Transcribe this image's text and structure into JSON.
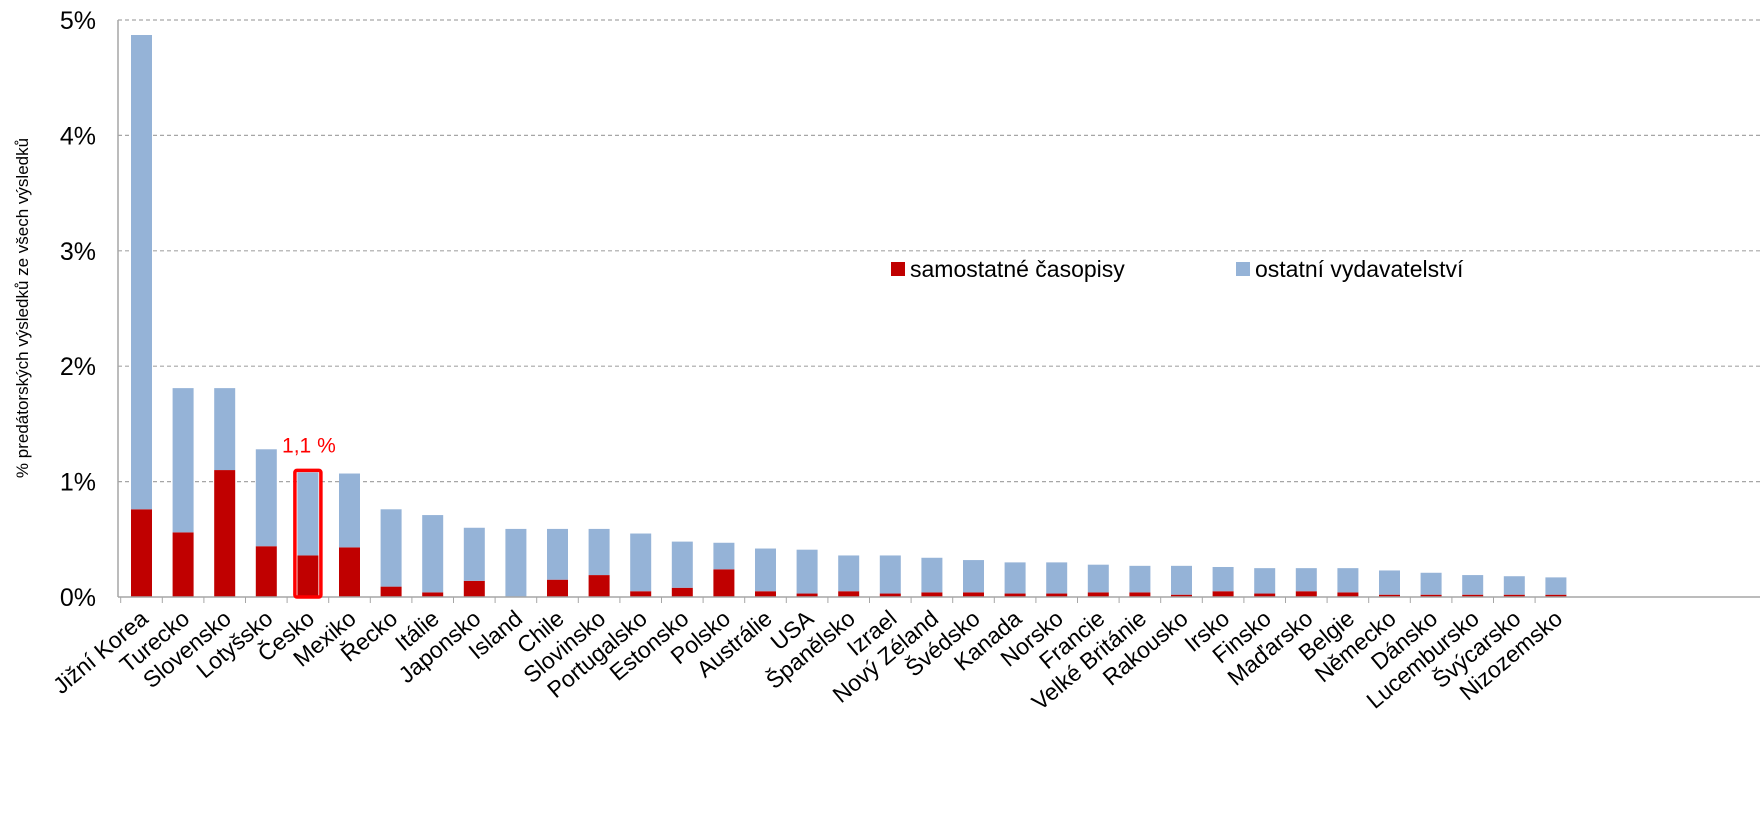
{
  "chart_data": {
    "type": "bar",
    "stacked": true,
    "ylabel": "% predátorských výsledků ze všech výsledků",
    "xlabel": "",
    "ylim": [
      0,
      5
    ],
    "yticks": [
      "0%",
      "1%",
      "2%",
      "3%",
      "4%",
      "5%"
    ],
    "grid": true,
    "legend_position": "upper-right inside plot",
    "categories": [
      "Jižní Korea",
      "Turecko",
      "Slovensko",
      "Lotyšsko",
      "Česko",
      "Mexiko",
      "Řecko",
      "Itálie",
      "Japonsko",
      "Island",
      "Chile",
      "Slovinsko",
      "Portugalsko",
      "Estonsko",
      "Polsko",
      "Austrálie",
      "USA",
      "Španělsko",
      "Izrael",
      "Nový Zéland",
      "Švédsko",
      "Kanada",
      "Norsko",
      "Francie",
      "Velké Británie",
      "Rakousko",
      "Irsko",
      "Finsko",
      "Maďarsko",
      "Belgie",
      "Německo",
      "Dánsko",
      "Lucembursko",
      "Švýcarsko",
      "Nizozemsko"
    ],
    "series": [
      {
        "name": "samostatné časopisy",
        "color": "#c00000",
        "values": [
          0.76,
          0.56,
          1.1,
          0.44,
          0.36,
          0.43,
          0.09,
          0.04,
          0.14,
          0.0,
          0.15,
          0.19,
          0.05,
          0.08,
          0.24,
          0.05,
          0.03,
          0.05,
          0.03,
          0.04,
          0.04,
          0.03,
          0.03,
          0.04,
          0.04,
          0.02,
          0.05,
          0.03,
          0.05,
          0.04,
          0.02,
          0.02,
          0.02,
          0.02,
          0.02
        ]
      },
      {
        "name": "ostatní vydavatelství",
        "color": "#95b3d7",
        "values": [
          4.11,
          1.25,
          0.71,
          0.84,
          0.72,
          0.64,
          0.67,
          0.67,
          0.46,
          0.59,
          0.44,
          0.4,
          0.5,
          0.4,
          0.23,
          0.37,
          0.38,
          0.31,
          0.33,
          0.3,
          0.28,
          0.27,
          0.27,
          0.24,
          0.23,
          0.25,
          0.21,
          0.22,
          0.2,
          0.21,
          0.21,
          0.19,
          0.17,
          0.16,
          0.15
        ]
      }
    ],
    "annotations": [
      {
        "category": "Česko",
        "text": "1,1 %",
        "color": "#ff0000",
        "highlight_box": true
      }
    ]
  }
}
